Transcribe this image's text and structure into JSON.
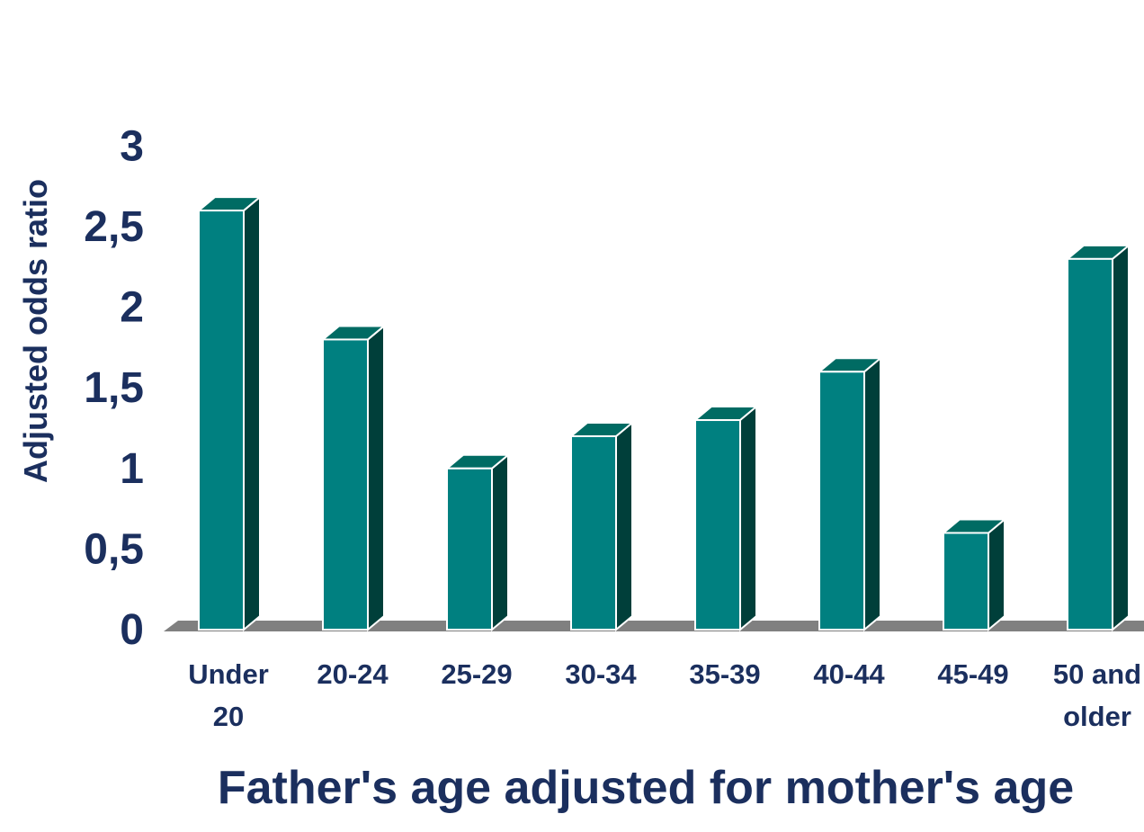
{
  "chart_data": {
    "type": "bar",
    "style": "3d-column",
    "categories": [
      "Under 20",
      "20-24",
      "25-29",
      "30-34",
      "35-39",
      "40-44",
      "45-49",
      "50 and older"
    ],
    "category_lines": [
      [
        "Under",
        "20"
      ],
      [
        "20-24"
      ],
      [
        "25-29"
      ],
      [
        "30-34"
      ],
      [
        "35-39"
      ],
      [
        "40-44"
      ],
      [
        "45-49"
      ],
      [
        "50 and",
        "older"
      ]
    ],
    "values": [
      2.6,
      1.8,
      1.0,
      1.2,
      1.3,
      1.6,
      0.6,
      2.3
    ],
    "xlabel": "Father's age adjusted for mother's age",
    "ylabel": "Adjusted odds ratio",
    "ylim": [
      0,
      3
    ],
    "yticks": [
      "0",
      "0,5",
      "1",
      "1,5",
      "2",
      "2,5",
      "3"
    ],
    "grid": false,
    "legend": "none",
    "colors": {
      "bar_front": "#008080",
      "bar_top": "#006b63",
      "bar_side": "#003f3a",
      "bar_outline": "#ffffff",
      "floor": "#808080",
      "text": "#1b2f5e"
    }
  }
}
